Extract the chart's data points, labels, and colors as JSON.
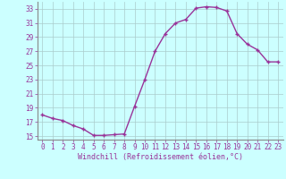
{
  "x": [
    0,
    1,
    2,
    3,
    4,
    5,
    6,
    7,
    8,
    9,
    10,
    11,
    12,
    13,
    14,
    15,
    16,
    17,
    18,
    19,
    20,
    21,
    22,
    23
  ],
  "y": [
    18.0,
    17.5,
    17.2,
    16.5,
    16.0,
    15.1,
    15.1,
    15.2,
    15.3,
    19.2,
    23.0,
    27.0,
    29.5,
    31.0,
    31.5,
    33.1,
    33.3,
    33.2,
    32.7,
    29.5,
    28.0,
    27.2,
    25.5,
    25.5
  ],
  "line_color": "#993399",
  "marker": "+",
  "bg_color": "#ccffff",
  "grid_color": "#aacccc",
  "xlabel": "Windchill (Refroidissement éolien,°C)",
  "ylim": [
    14.5,
    34.0
  ],
  "yticks": [
    15,
    17,
    19,
    21,
    23,
    25,
    27,
    29,
    31,
    33
  ],
  "xticks": [
    0,
    1,
    2,
    3,
    4,
    5,
    6,
    7,
    8,
    9,
    10,
    11,
    12,
    13,
    14,
    15,
    16,
    17,
    18,
    19,
    20,
    21,
    22,
    23
  ],
  "label_color": "#993399",
  "axis_color": "#888888",
  "label_fontsize": 6.0,
  "tick_fontsize": 5.5,
  "linewidth": 1.0,
  "markersize": 3.5,
  "markeredgewidth": 1.0
}
